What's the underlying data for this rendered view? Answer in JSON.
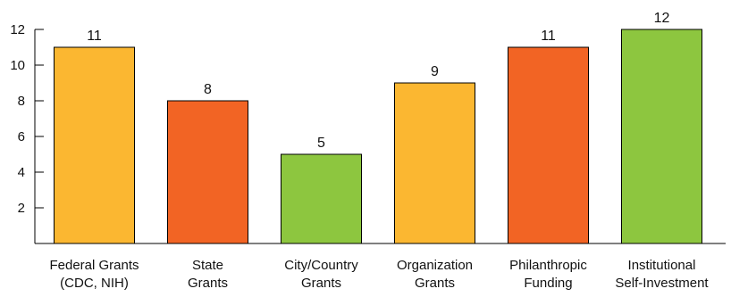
{
  "chart_data": {
    "type": "bar",
    "title": "",
    "xlabel": "",
    "ylabel": "",
    "ylim": [
      0,
      12
    ],
    "yticks": [
      2,
      4,
      6,
      8,
      10,
      12
    ],
    "grid": false,
    "categories": [
      [
        "Federal Grants",
        "(CDC, NIH)"
      ],
      [
        "State",
        "Grants"
      ],
      [
        "City/Country",
        "Grants"
      ],
      [
        "Organization",
        "Grants"
      ],
      [
        "Philanthropic",
        "Funding"
      ],
      [
        "Institutional",
        "Self-Investment"
      ]
    ],
    "values": [
      11,
      8,
      5,
      9,
      11,
      12
    ],
    "bar_colors": [
      "#FBB731",
      "#F26424",
      "#8DC63F",
      "#FBB731",
      "#F26424",
      "#8DC63F"
    ],
    "axis_color": "#000000"
  }
}
